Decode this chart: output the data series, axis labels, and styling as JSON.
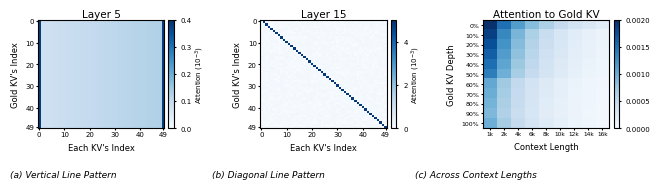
{
  "panel_a": {
    "title": "Layer 5",
    "xlabel": "Each KV's Index",
    "ylabel": "Gold KV's Index",
    "vmin": 0.0,
    "vmax": 0.4,
    "colorbar_ticks": [
      0.0,
      0.1,
      0.2,
      0.3,
      0.4
    ],
    "n": 50,
    "bg_val": 0.1,
    "stripe_val": 0.38
  },
  "panel_b": {
    "title": "Layer 15",
    "xlabel": "Each KV's Index",
    "ylabel": "Gold KV's Index",
    "vmin": 0.0,
    "vmax": 5.0,
    "colorbar_ticks": [
      0,
      2,
      4
    ],
    "n": 50,
    "bg_val": 0.08,
    "diag_val": 4.8
  },
  "panel_c": {
    "title": "Attention to Gold KV",
    "xlabel": "Context Length",
    "ylabel": "Gold KV Depth",
    "colorbar_ticks": [
      0.0,
      0.0005,
      0.001,
      0.0015,
      0.002
    ],
    "vmin": 0.0,
    "vmax": 0.002,
    "xlabels": [
      "1k",
      "2k",
      "4k",
      "6k",
      "8k",
      "10k",
      "12k",
      "14k",
      "16k"
    ],
    "ylabels": [
      "0%",
      "10%",
      "20%",
      "30%",
      "40%",
      "50%",
      "60%",
      "70%",
      "80%",
      "90%",
      "100%"
    ]
  },
  "caption_a": "(a) Vertical Line Pattern",
  "caption_b": "(b) Diagonal Line Pattern",
  "caption_c": "(c) Across Context Lengths",
  "cmap": "Blues"
}
